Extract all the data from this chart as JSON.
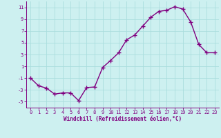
{
  "x": [
    0,
    1,
    2,
    3,
    4,
    5,
    6,
    7,
    8,
    9,
    10,
    11,
    12,
    13,
    14,
    15,
    16,
    17,
    18,
    19,
    20,
    21,
    22,
    23
  ],
  "y": [
    -1,
    -2.3,
    -2.7,
    -3.7,
    -3.5,
    -3.5,
    -4.8,
    -2.6,
    -2.5,
    0.8,
    2.0,
    3.3,
    5.5,
    6.3,
    7.8,
    9.3,
    10.3,
    10.5,
    11.1,
    10.7,
    8.5,
    4.7,
    3.3,
    3.3
  ],
  "line_color": "#800080",
  "marker": "+",
  "marker_size": 4,
  "marker_lw": 1.0,
  "line_width": 1.0,
  "bg_color": "#cdf0f0",
  "grid_color": "#aadddd",
  "xlabel": "Windchill (Refroidissement éolien,°C)",
  "xlabel_color": "#800080",
  "tick_color": "#800080",
  "spine_color": "#800080",
  "ylim": [
    -6,
    12
  ],
  "xlim": [
    -0.5,
    23.5
  ],
  "yticks": [
    -5,
    -3,
    -1,
    1,
    3,
    5,
    7,
    9,
    11
  ],
  "xticks": [
    0,
    1,
    2,
    3,
    4,
    5,
    6,
    7,
    8,
    9,
    10,
    11,
    12,
    13,
    14,
    15,
    16,
    17,
    18,
    19,
    20,
    21,
    22,
    23
  ],
  "tick_fontsize": 5.0,
  "xlabel_fontsize": 5.5,
  "fig_width": 3.2,
  "fig_height": 2.0,
  "dpi": 100
}
